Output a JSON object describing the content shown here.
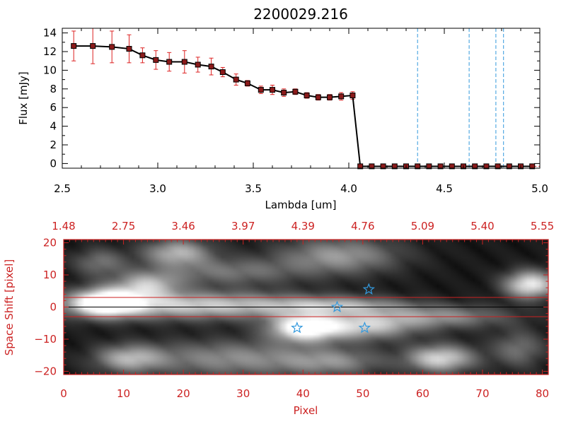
{
  "chart_data": [
    {
      "type": "line",
      "title": "2200029.216",
      "xlabel": "Lambda [um]",
      "ylabel": "Flux [mJy]",
      "xlim": [
        2.5,
        5.0
      ],
      "ylim": [
        -0.5,
        14.5
      ],
      "xticks": [
        2.5,
        3.0,
        3.5,
        4.0,
        4.5,
        5.0
      ],
      "xtick_labels": [
        "2.5",
        "3.0",
        "3.5",
        "4.0",
        "4.5",
        "5.0"
      ],
      "yticks": [
        0,
        2,
        4,
        6,
        8,
        10,
        12,
        14
      ],
      "ytick_labels": [
        "0",
        "2",
        "4",
        "6",
        "8",
        "10",
        "12",
        "14"
      ],
      "series": [
        {
          "name": "flux",
          "color": "#000000",
          "marker_color": "#8b1a1a",
          "errorbar_color": "#dd2222",
          "x": [
            2.56,
            2.66,
            2.76,
            2.85,
            2.92,
            2.99,
            3.06,
            3.14,
            3.21,
            3.28,
            3.34,
            3.41,
            3.47,
            3.54,
            3.6,
            3.66,
            3.72,
            3.78,
            3.84,
            3.9,
            3.96,
            4.02,
            4.06,
            4.12,
            4.18,
            4.24,
            4.3,
            4.36,
            4.42,
            4.48,
            4.54,
            4.6,
            4.66,
            4.72,
            4.78,
            4.84,
            4.9,
            4.96
          ],
          "y": [
            12.6,
            12.6,
            12.5,
            12.3,
            11.6,
            11.1,
            10.9,
            10.9,
            10.6,
            10.4,
            9.8,
            9.0,
            8.6,
            7.9,
            7.9,
            7.6,
            7.7,
            7.3,
            7.1,
            7.1,
            7.2,
            7.3,
            -0.3,
            -0.3,
            -0.3,
            -0.3,
            -0.3,
            -0.3,
            -0.3,
            -0.3,
            -0.3,
            -0.3,
            -0.3,
            -0.3,
            -0.3,
            -0.3,
            -0.3,
            -0.3
          ],
          "err": [
            1.6,
            1.9,
            1.7,
            1.5,
            0.8,
            1.0,
            1.0,
            1.2,
            0.8,
            0.9,
            0.5,
            0.6,
            0.3,
            0.4,
            0.5,
            0.4,
            0.3,
            0.3,
            0.3,
            0.3,
            0.4,
            0.4,
            0,
            0,
            0,
            0,
            0,
            0,
            0,
            0,
            0,
            0,
            0,
            0,
            0,
            0,
            0,
            0
          ]
        }
      ],
      "vlines": [
        4.36,
        4.63,
        4.77,
        4.81
      ],
      "vline_color": "#3399dd",
      "hline": {
        "y": -0.3,
        "from": 4.06,
        "to": 5.0,
        "color": "#dd2222"
      }
    },
    {
      "type": "heatmap",
      "xlabel": "Pixel",
      "ylabel": "Space Shift [pixel]",
      "xlim": [
        0,
        81
      ],
      "ylim": [
        -21,
        21
      ],
      "xticks": [
        0,
        10,
        20,
        30,
        40,
        50,
        60,
        70,
        80
      ],
      "xtick_labels": [
        "0",
        "10",
        "20",
        "30",
        "40",
        "50",
        "60",
        "70",
        "80"
      ],
      "yticks": [
        -20,
        -10,
        0,
        10,
        20
      ],
      "ytick_labels": [
        "−20",
        "−10",
        "0",
        "10",
        "20"
      ],
      "top_axis_labels": [
        "1.48",
        "2.75",
        "3.46",
        "3.97",
        "4.39",
        "4.76",
        "5.09",
        "5.40",
        "5.55"
      ],
      "axis_color": "#cc2222",
      "hlines": [
        3,
        -3
      ],
      "center_line": 0,
      "stars": [
        {
          "x": 51,
          "y": 5.5
        },
        {
          "x": 45.7,
          "y": 0
        },
        {
          "x": 39,
          "y": -6.5
        },
        {
          "x": 50.3,
          "y": -6.5
        }
      ],
      "star_color": "#3399dd",
      "blobs": [
        {
          "x": 7,
          "y": 1.5,
          "sx": 4,
          "sy": 3,
          "v": 1.0
        },
        {
          "x": 22,
          "y": 0.5,
          "sx": 14,
          "sy": 3,
          "v": 0.7
        },
        {
          "x": 46,
          "y": 0.5,
          "sx": 8,
          "sy": 2,
          "v": 0.45
        },
        {
          "x": 40,
          "y": -6.5,
          "sx": 4,
          "sy": 3,
          "v": 0.95
        },
        {
          "x": 50,
          "y": -6,
          "sx": 6,
          "sy": 3,
          "v": 0.65
        },
        {
          "x": 63,
          "y": -3,
          "sx": 8,
          "sy": 2.5,
          "v": 0.45
        },
        {
          "x": 78,
          "y": 7,
          "sx": 3,
          "sy": 3,
          "v": 0.85
        },
        {
          "x": 19,
          "y": 17,
          "sx": 4,
          "sy": 3,
          "v": 0.6
        },
        {
          "x": 14,
          "y": 7,
          "sx": 4,
          "sy": 3,
          "v": 0.6
        },
        {
          "x": 28,
          "y": 11,
          "sx": 8,
          "sy": 3,
          "v": 0.35
        },
        {
          "x": 46,
          "y": 16,
          "sx": 7,
          "sy": 4,
          "v": 0.5
        },
        {
          "x": 11,
          "y": -16,
          "sx": 4,
          "sy": 3,
          "v": 0.55
        },
        {
          "x": 28,
          "y": -16,
          "sx": 10,
          "sy": 4,
          "v": 0.45
        },
        {
          "x": 45,
          "y": -17,
          "sx": 6,
          "sy": 3,
          "v": 0.4
        },
        {
          "x": 63,
          "y": -16,
          "sx": 4,
          "sy": 3,
          "v": 0.75
        },
        {
          "x": 76,
          "y": -13,
          "sx": 3,
          "sy": 4,
          "v": 0.35
        },
        {
          "x": 6,
          "y": 14,
          "sx": 3,
          "sy": 3,
          "v": 0.35
        }
      ]
    }
  ]
}
